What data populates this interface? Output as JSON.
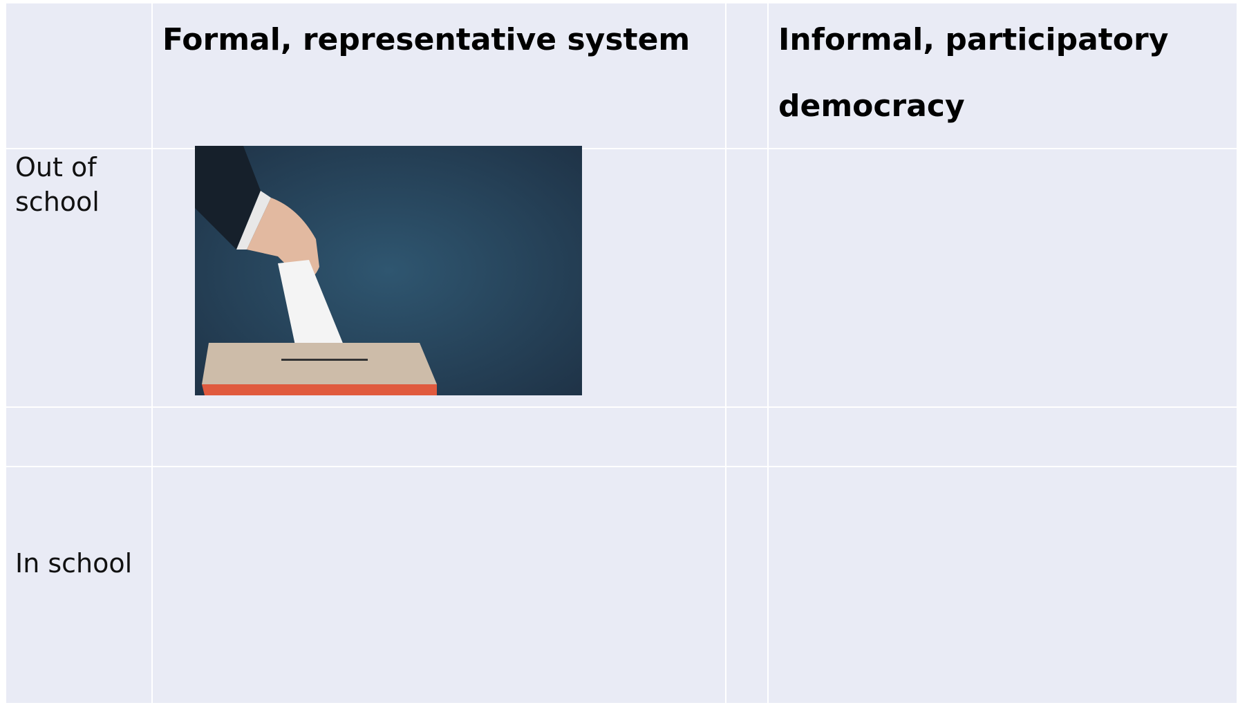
{
  "table": {
    "header": [
      "Formal, representative system",
      "Informal, participatory democracy"
    ],
    "rows": [
      "Out of school",
      "In school"
    ]
  }
}
